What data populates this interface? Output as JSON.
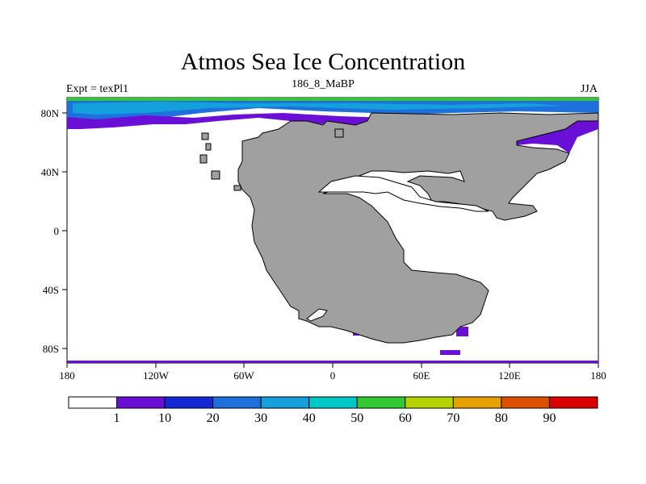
{
  "title": "Atmos Sea Ice Concentration",
  "subtitle_left": "Expt = texPl1",
  "subtitle_center": "186_8_MaBP",
  "subtitle_right": "JJA",
  "x_ticks": [
    "180",
    "120W",
    "60W",
    "0",
    "60E",
    "120E",
    "180"
  ],
  "y_ticks": [
    "80N",
    "40N",
    "0",
    "40S",
    "80S"
  ],
  "colorbar": {
    "colors": [
      "#ffffff",
      "#6a0fd6",
      "#1428d6",
      "#1e70dc",
      "#14a0dc",
      "#00c8c8",
      "#32c832",
      "#b4d200",
      "#e6a000",
      "#dc5000",
      "#dc0000"
    ],
    "labels": [
      "1",
      "10",
      "20",
      "30",
      "40",
      "50",
      "60",
      "70",
      "80",
      "90"
    ]
  },
  "map_colors": {
    "land": "#a0a0a0",
    "ocean": "#ffffff",
    "outline": "#000000"
  }
}
